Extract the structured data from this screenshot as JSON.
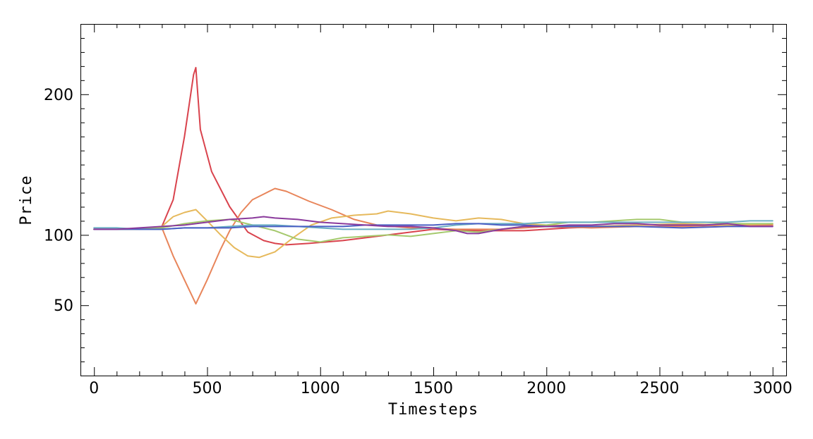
{
  "chart_data": {
    "type": "line",
    "title": "",
    "xlabel": "Timesteps",
    "ylabel": "Price",
    "xlim": [
      -60,
      3060
    ],
    "ylim": [
      0,
      250
    ],
    "xticks": [
      0,
      500,
      1000,
      1500,
      2000,
      2500,
      3000
    ],
    "xtick_labels": [
      "0",
      "500",
      "1000",
      "1500",
      "2000",
      "2500",
      "3000"
    ],
    "yticks": [
      50,
      100,
      200
    ],
    "ytick_labels": [
      "50",
      "100",
      "200"
    ],
    "grid": false,
    "legend": "none",
    "series": [
      {
        "color": "#d9434d",
        "points": [
          [
            0,
            104
          ],
          [
            100,
            104
          ],
          [
            200,
            104
          ],
          [
            300,
            106
          ],
          [
            350,
            125
          ],
          [
            400,
            170
          ],
          [
            440,
            214
          ],
          [
            450,
            219
          ],
          [
            470,
            175
          ],
          [
            520,
            145
          ],
          [
            600,
            120
          ],
          [
            680,
            102
          ],
          [
            750,
            96
          ],
          [
            800,
            94
          ],
          [
            850,
            93
          ],
          [
            950,
            94
          ],
          [
            1100,
            96
          ],
          [
            1300,
            100
          ],
          [
            1500,
            104
          ],
          [
            1700,
            103
          ],
          [
            1900,
            103
          ],
          [
            2100,
            105
          ],
          [
            2300,
            106
          ],
          [
            2500,
            106
          ],
          [
            2700,
            107
          ],
          [
            2900,
            107
          ],
          [
            3000,
            107
          ]
        ]
      },
      {
        "color": "#e8855a",
        "points": [
          [
            0,
            104
          ],
          [
            100,
            104
          ],
          [
            200,
            104
          ],
          [
            300,
            105
          ],
          [
            350,
            85
          ],
          [
            400,
            68
          ],
          [
            450,
            51
          ],
          [
            500,
            68
          ],
          [
            560,
            90
          ],
          [
            600,
            103
          ],
          [
            650,
            116
          ],
          [
            700,
            125
          ],
          [
            750,
            129
          ],
          [
            800,
            133
          ],
          [
            850,
            131
          ],
          [
            950,
            124
          ],
          [
            1050,
            118
          ],
          [
            1150,
            111
          ],
          [
            1250,
            107
          ],
          [
            1400,
            105
          ],
          [
            1600,
            104
          ],
          [
            1800,
            104
          ],
          [
            2000,
            106
          ],
          [
            2200,
            105
          ],
          [
            2400,
            106
          ],
          [
            2600,
            106
          ],
          [
            2800,
            107
          ],
          [
            3000,
            107
          ]
        ]
      },
      {
        "color": "#e6b95c",
        "points": [
          [
            0,
            104
          ],
          [
            100,
            104
          ],
          [
            200,
            104
          ],
          [
            300,
            106
          ],
          [
            350,
            113
          ],
          [
            400,
            116
          ],
          [
            450,
            118
          ],
          [
            500,
            110
          ],
          [
            560,
            100
          ],
          [
            620,
            91
          ],
          [
            680,
            85
          ],
          [
            730,
            84
          ],
          [
            800,
            88
          ],
          [
            880,
            98
          ],
          [
            960,
            107
          ],
          [
            1050,
            112
          ],
          [
            1150,
            114
          ],
          [
            1250,
            115
          ],
          [
            1300,
            117
          ],
          [
            1400,
            115
          ],
          [
            1500,
            112
          ],
          [
            1600,
            110
          ],
          [
            1700,
            112
          ],
          [
            1800,
            111
          ],
          [
            1900,
            108
          ],
          [
            2000,
            107
          ],
          [
            2200,
            106
          ],
          [
            2400,
            107
          ],
          [
            2600,
            108
          ],
          [
            2800,
            107
          ],
          [
            3000,
            108
          ]
        ]
      },
      {
        "color": "#a5c96d",
        "points": [
          [
            0,
            104
          ],
          [
            100,
            104
          ],
          [
            200,
            104
          ],
          [
            300,
            105
          ],
          [
            400,
            108
          ],
          [
            500,
            110
          ],
          [
            600,
            111
          ],
          [
            700,
            107
          ],
          [
            800,
            103
          ],
          [
            900,
            97
          ],
          [
            1000,
            95
          ],
          [
            1100,
            98
          ],
          [
            1200,
            99
          ],
          [
            1300,
            100
          ],
          [
            1400,
            99
          ],
          [
            1500,
            101
          ],
          [
            1600,
            103
          ],
          [
            1700,
            102
          ],
          [
            1800,
            104
          ],
          [
            1900,
            106
          ],
          [
            2000,
            107
          ],
          [
            2100,
            109
          ],
          [
            2200,
            109
          ],
          [
            2300,
            110
          ],
          [
            2400,
            111
          ],
          [
            2500,
            111
          ],
          [
            2600,
            109
          ],
          [
            2700,
            109
          ],
          [
            2800,
            108
          ],
          [
            2900,
            108
          ],
          [
            3000,
            108
          ]
        ]
      },
      {
        "color": "#6aaec3",
        "points": [
          [
            0,
            105
          ],
          [
            100,
            105
          ],
          [
            200,
            104
          ],
          [
            300,
            104
          ],
          [
            400,
            105
          ],
          [
            500,
            105
          ],
          [
            600,
            106
          ],
          [
            700,
            107
          ],
          [
            800,
            107
          ],
          [
            900,
            106
          ],
          [
            1000,
            105
          ],
          [
            1100,
            104
          ],
          [
            1200,
            104
          ],
          [
            1300,
            104
          ],
          [
            1400,
            104
          ],
          [
            1500,
            105
          ],
          [
            1600,
            107
          ],
          [
            1700,
            108
          ],
          [
            1800,
            108
          ],
          [
            1900,
            108
          ],
          [
            2000,
            109
          ],
          [
            2200,
            109
          ],
          [
            2400,
            109
          ],
          [
            2600,
            109
          ],
          [
            2800,
            109
          ],
          [
            2900,
            110
          ],
          [
            3000,
            110
          ]
        ]
      },
      {
        "color": "#4a5fc4",
        "points": [
          [
            0,
            104
          ],
          [
            100,
            104
          ],
          [
            200,
            104
          ],
          [
            300,
            104
          ],
          [
            400,
            105
          ],
          [
            500,
            105
          ],
          [
            600,
            105
          ],
          [
            700,
            106
          ],
          [
            800,
            106
          ],
          [
            900,
            106
          ],
          [
            1000,
            106
          ],
          [
            1100,
            106
          ],
          [
            1200,
            107
          ],
          [
            1300,
            107
          ],
          [
            1400,
            107
          ],
          [
            1500,
            107
          ],
          [
            1600,
            108
          ],
          [
            1700,
            108
          ],
          [
            1800,
            107
          ],
          [
            1900,
            107
          ],
          [
            2000,
            106
          ],
          [
            2200,
            106
          ],
          [
            2400,
            106
          ],
          [
            2600,
            105
          ],
          [
            2800,
            106
          ],
          [
            3000,
            106
          ]
        ]
      },
      {
        "color": "#8a3a9c",
        "points": [
          [
            0,
            104
          ],
          [
            100,
            104
          ],
          [
            200,
            105
          ],
          [
            300,
            106
          ],
          [
            400,
            107
          ],
          [
            500,
            109
          ],
          [
            600,
            111
          ],
          [
            700,
            112
          ],
          [
            750,
            113
          ],
          [
            800,
            112
          ],
          [
            900,
            111
          ],
          [
            1000,
            109
          ],
          [
            1100,
            108
          ],
          [
            1200,
            107
          ],
          [
            1300,
            106
          ],
          [
            1400,
            106
          ],
          [
            1500,
            105
          ],
          [
            1600,
            103
          ],
          [
            1650,
            101
          ],
          [
            1700,
            101
          ],
          [
            1800,
            104
          ],
          [
            1900,
            106
          ],
          [
            2000,
            106
          ],
          [
            2100,
            107
          ],
          [
            2200,
            107
          ],
          [
            2300,
            108
          ],
          [
            2400,
            108
          ],
          [
            2500,
            107
          ],
          [
            2600,
            107
          ],
          [
            2700,
            107
          ],
          [
            2800,
            108
          ],
          [
            2900,
            106
          ],
          [
            3000,
            106
          ]
        ]
      }
    ]
  }
}
